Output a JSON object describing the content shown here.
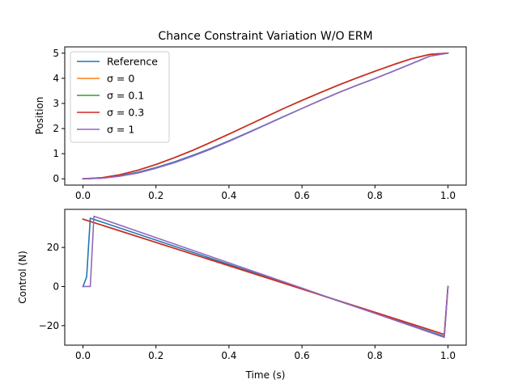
{
  "chart_data": [
    {
      "type": "line",
      "title": "Chance Constraint Variation W/O ERM",
      "xlabel": "",
      "ylabel": "Position",
      "xlim": [
        -0.05,
        1.05
      ],
      "ylim": [
        -0.25,
        5.25
      ],
      "xticks": [
        0.0,
        0.2,
        0.4,
        0.6,
        0.8,
        1.0
      ],
      "xtick_labels": [
        "0.0",
        "0.2",
        "0.4",
        "0.6",
        "0.8",
        "1.0"
      ],
      "yticks": [
        0,
        1,
        2,
        3,
        4,
        5
      ],
      "ytick_labels": [
        "0",
        "1",
        "2",
        "3",
        "4",
        "5"
      ],
      "legend": "top-left",
      "grid": false,
      "series": [
        {
          "name": "Reference",
          "color": "#1f77b4",
          "x": [
            0,
            0.05,
            0.1,
            0.15,
            0.2,
            0.25,
            0.3,
            0.35,
            0.4,
            0.45,
            0.5,
            0.55,
            0.6,
            0.65,
            0.7,
            0.75,
            0.8,
            0.85,
            0.9,
            0.95,
            1.0
          ],
          "y": [
            0,
            0.03,
            0.12,
            0.26,
            0.45,
            0.67,
            0.93,
            1.21,
            1.51,
            1.83,
            2.15,
            2.48,
            2.8,
            3.12,
            3.43,
            3.72,
            3.99,
            4.28,
            4.58,
            4.88,
            5.0
          ]
        },
        {
          "name": "σ = 0",
          "color": "#ff7f0e",
          "x": [
            0,
            0.05,
            0.1,
            0.15,
            0.2,
            0.25,
            0.3,
            0.35,
            0.4,
            0.45,
            0.5,
            0.55,
            0.6,
            0.65,
            0.7,
            0.75,
            0.8,
            0.85,
            0.9,
            0.95,
            1.0
          ],
          "y": [
            0,
            0.04,
            0.16,
            0.34,
            0.57,
            0.84,
            1.13,
            1.45,
            1.78,
            2.12,
            2.46,
            2.8,
            3.12,
            3.43,
            3.73,
            4.01,
            4.28,
            4.54,
            4.78,
            4.95,
            5.0
          ]
        },
        {
          "name": "σ = 0.1",
          "color": "#2ca02c",
          "x": [
            0,
            0.05,
            0.1,
            0.15,
            0.2,
            0.25,
            0.3,
            0.35,
            0.4,
            0.45,
            0.5,
            0.55,
            0.6,
            0.65,
            0.7,
            0.75,
            0.8,
            0.85,
            0.9,
            0.95,
            1.0
          ],
          "y": [
            0,
            0.04,
            0.16,
            0.34,
            0.57,
            0.84,
            1.13,
            1.45,
            1.78,
            2.12,
            2.46,
            2.8,
            3.12,
            3.43,
            3.73,
            4.01,
            4.28,
            4.54,
            4.78,
            4.95,
            5.0
          ]
        },
        {
          "name": "σ = 0.3",
          "color": "#d62728",
          "x": [
            0,
            0.05,
            0.1,
            0.15,
            0.2,
            0.25,
            0.3,
            0.35,
            0.4,
            0.45,
            0.5,
            0.55,
            0.6,
            0.65,
            0.7,
            0.75,
            0.8,
            0.85,
            0.9,
            0.95,
            1.0
          ],
          "y": [
            0,
            0.04,
            0.16,
            0.34,
            0.57,
            0.84,
            1.13,
            1.45,
            1.78,
            2.12,
            2.46,
            2.8,
            3.12,
            3.43,
            3.73,
            4.01,
            4.28,
            4.54,
            4.78,
            4.95,
            5.0
          ]
        },
        {
          "name": "σ = 1",
          "color": "#9467bd",
          "x": [
            0,
            0.05,
            0.1,
            0.15,
            0.2,
            0.25,
            0.3,
            0.35,
            0.4,
            0.45,
            0.5,
            0.55,
            0.6,
            0.65,
            0.7,
            0.75,
            0.8,
            0.85,
            0.9,
            0.95,
            1.0
          ],
          "y": [
            0,
            0.02,
            0.1,
            0.23,
            0.42,
            0.64,
            0.9,
            1.18,
            1.49,
            1.81,
            2.14,
            2.47,
            2.8,
            3.12,
            3.43,
            3.72,
            3.99,
            4.28,
            4.58,
            4.88,
            5.0
          ]
        }
      ]
    },
    {
      "type": "line",
      "title": "",
      "xlabel": "Time (s)",
      "ylabel": "Control (N)",
      "xlim": [
        -0.05,
        1.05
      ],
      "ylim": [
        -30,
        39.5
      ],
      "xticks": [
        0.0,
        0.2,
        0.4,
        0.6,
        0.8,
        1.0
      ],
      "xtick_labels": [
        "0.0",
        "0.2",
        "0.4",
        "0.6",
        "0.8",
        "1.0"
      ],
      "yticks": [
        -20,
        0,
        20
      ],
      "ytick_labels": [
        "−20",
        "0",
        "20"
      ],
      "grid": false,
      "series": [
        {
          "name": "Reference",
          "color": "#1f77b4",
          "x": [
            0,
            0.01,
            0.02,
            0.99,
            1.0
          ],
          "y": [
            0,
            5,
            35,
            -25.5,
            0
          ]
        },
        {
          "name": "σ = 0",
          "color": "#ff7f0e",
          "x": [
            0,
            0.99,
            1.0
          ],
          "y": [
            34.5,
            -24.5,
            0
          ]
        },
        {
          "name": "σ = 0.1",
          "color": "#2ca02c",
          "x": [
            0,
            0.99,
            1.0
          ],
          "y": [
            34.5,
            -24.5,
            0
          ]
        },
        {
          "name": "σ = 0.3",
          "color": "#d62728",
          "x": [
            0,
            0.99,
            1.0
          ],
          "y": [
            34.5,
            -24.5,
            0
          ]
        },
        {
          "name": "σ = 1",
          "color": "#9467bd",
          "x": [
            0,
            0.01,
            0.02,
            0.03,
            0.99,
            1.0
          ],
          "y": [
            0,
            0,
            0,
            36,
            -26,
            0
          ]
        }
      ]
    }
  ]
}
